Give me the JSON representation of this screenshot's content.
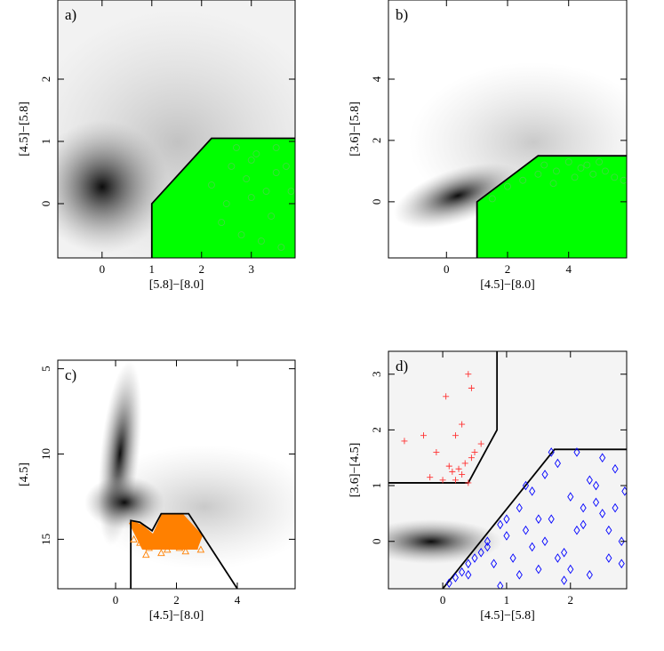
{
  "chart_data": [
    {
      "type": "scatter",
      "panel_label": "a)",
      "xlabel": "[5.8]−[8.0]",
      "ylabel": "[4.5]−[5.8]",
      "xlim": [
        -0.89,
        3.88
      ],
      "ylim": [
        -0.87,
        3.27
      ],
      "xticks": [
        0,
        1,
        2,
        3
      ],
      "yticks": [
        0,
        1,
        2
      ],
      "boundaries": [
        {
          "color": "#000000",
          "fill": "#00ff00",
          "x": [
            1,
            1,
            2.2,
            3.88
          ],
          "values": [
            -0.87,
            0,
            1.05,
            1.05
          ]
        }
      ],
      "series": [
        {
          "color": "#3ddc3d",
          "marker": "circle",
          "x": [
            2.6,
            2.9,
            3.1,
            3.3,
            3.5,
            3.7,
            2.4,
            2.8,
            3.0,
            3.4,
            3.6,
            2.2,
            2.7,
            3.2,
            3.8,
            2.5,
            3.0,
            3.5
          ],
          "values": [
            0.6,
            0.4,
            0.8,
            0.2,
            0.5,
            0.6,
            -0.3,
            -0.5,
            0.1,
            -0.2,
            -0.7,
            0.3,
            0.9,
            -0.6,
            0.2,
            0.0,
            0.7,
            0.9
          ]
        }
      ]
    },
    {
      "type": "scatter",
      "panel_label": "b)",
      "xlabel": "[4.5]−[8.0]",
      "ylabel": "[3.6]−[5.8]",
      "xlim": [
        -1.9,
        5.9
      ],
      "ylim": [
        -1.83,
        6.58
      ],
      "xticks": [
        0,
        2,
        4
      ],
      "yticks": [
        0,
        2,
        4
      ],
      "boundaries": [
        {
          "color": "#000000",
          "fill": "#00ff00",
          "x": [
            1,
            1,
            3,
            5.9
          ],
          "values": [
            -1.83,
            0,
            1.5,
            1.5
          ]
        }
      ],
      "series": [
        {
          "color": "#3ddc3d",
          "marker": "circle",
          "x": [
            3.2,
            3.6,
            4.0,
            4.4,
            4.8,
            5.2,
            5.5,
            5.8,
            2.5,
            3.0,
            3.5,
            4.2,
            4.6,
            5.0,
            2.0,
            1.5
          ],
          "values": [
            1.2,
            1.0,
            1.3,
            1.1,
            0.9,
            1.0,
            0.8,
            0.7,
            0.7,
            0.9,
            0.6,
            0.8,
            1.2,
            1.3,
            0.5,
            0.1
          ]
        }
      ]
    },
    {
      "type": "scatter",
      "panel_label": "c)",
      "xlabel": "[4.5]−[8.0]",
      "ylabel": "[4.5]",
      "xlim": [
        -1.9,
        5.9
      ],
      "ylim": [
        17.9,
        4.5
      ],
      "xticks": [
        0,
        2,
        4
      ],
      "yticks": [
        5,
        10,
        15
      ],
      "boundaries": [
        {
          "color": "#000000",
          "x": [
            0.5,
            0.5,
            0.8,
            1.2,
            1.5,
            2.4,
            4
          ],
          "values": [
            17.9,
            13.9,
            14.0,
            14.5,
            13.5,
            13.5,
            17.9
          ]
        }
      ],
      "series": [
        {
          "color": "#ff8000",
          "marker": "triangle",
          "x": [
            0.8,
            1.1,
            1.4,
            1.7,
            2.0,
            2.3,
            2.6,
            1.0,
            1.5,
            2.1,
            2.8,
            0.6
          ],
          "values": [
            15.2,
            15.5,
            15.4,
            15.6,
            15.3,
            15.7,
            15.4,
            15.9,
            15.8,
            15.5,
            15.6,
            15.0
          ]
        }
      ]
    },
    {
      "type": "scatter",
      "panel_label": "d)",
      "xlabel": "[4.5]−[5.8]",
      "ylabel": "[3.6]−[4.5]",
      "xlim": [
        -0.85,
        2.88
      ],
      "ylim": [
        -0.85,
        3.41
      ],
      "xticks": [
        0,
        1,
        2
      ],
      "yticks": [
        0,
        1,
        2,
        3
      ],
      "boundaries": [
        {
          "color": "#000000",
          "x": [
            -0.85,
            0.4,
            0.85,
            0.85
          ],
          "values": [
            1.05,
            1.05,
            2,
            3.41
          ]
        },
        {
          "color": "#000000",
          "x": [
            0,
            1.75,
            2.88
          ],
          "values": [
            -0.85,
            1.65,
            1.65
          ]
        }
      ],
      "series": [
        {
          "color": "#ff3030",
          "marker": "plus",
          "x": [
            -0.6,
            -0.3,
            -0.1,
            0.05,
            0.2,
            0.3,
            0.4,
            0.45,
            0.45,
            0.35,
            0.25,
            0.15,
            0.0,
            -0.2,
            0.5,
            0.6,
            0.3,
            0.2,
            0.1,
            0.4
          ],
          "values": [
            1.8,
            1.9,
            1.6,
            2.6,
            1.9,
            2.1,
            3.0,
            2.75,
            1.5,
            1.4,
            1.3,
            1.25,
            1.1,
            1.15,
            1.6,
            1.75,
            1.2,
            1.1,
            1.35,
            1.05
          ]
        },
        {
          "color": "#0000ff",
          "marker": "diamond",
          "x": [
            0.1,
            0.2,
            0.3,
            0.4,
            0.5,
            0.6,
            0.7,
            0.8,
            0.9,
            1.0,
            1.1,
            1.2,
            1.3,
            1.4,
            1.5,
            1.6,
            1.7,
            1.8,
            1.9,
            2.0,
            2.1,
            2.2,
            2.3,
            2.4,
            2.5,
            2.6,
            2.7,
            2.8,
            0.4,
            0.7,
            1.0,
            1.3,
            1.6,
            1.9,
            2.2,
            2.5,
            2.8,
            0.9,
            1.2,
            1.5,
            1.8,
            2.1,
            2.4,
            2.7,
            1.7,
            2.0,
            2.3,
            1.4,
            2.6,
            2.85
          ],
          "values": [
            -0.75,
            -0.65,
            -0.55,
            -0.6,
            -0.3,
            -0.2,
            0.0,
            -0.4,
            0.3,
            0.1,
            -0.3,
            0.6,
            0.2,
            0.9,
            -0.5,
            1.2,
            0.4,
            1.4,
            -0.2,
            0.8,
            1.6,
            0.3,
            -0.6,
            1.0,
            0.5,
            -0.3,
            1.3,
            0.0,
            -0.4,
            -0.1,
            0.4,
            1.0,
            0.0,
            -0.7,
            0.6,
            1.5,
            -0.4,
            -0.8,
            -0.6,
            0.4,
            -0.3,
            0.2,
            0.7,
            0.6,
            1.6,
            -0.5,
            1.1,
            -0.1,
            0.2,
            0.9
          ]
        }
      ]
    }
  ]
}
